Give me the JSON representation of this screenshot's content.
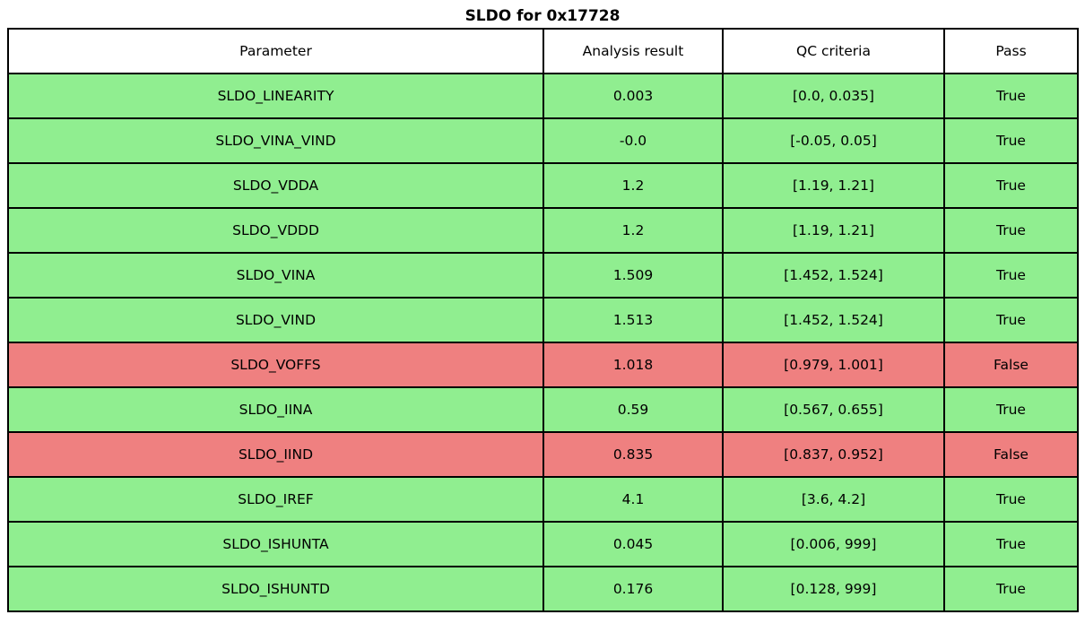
{
  "title": "SLDO for 0x17728",
  "colors": {
    "pass_row": "#90EE90",
    "fail_row": "#EF8080",
    "border": "#000000",
    "header_bg": "#FFFFFF",
    "text": "#000000"
  },
  "chart_data": {
    "type": "table",
    "title": "SLDO for 0x17728",
    "columns": [
      "Parameter",
      "Analysis result",
      "QC criteria",
      "Pass"
    ],
    "rows": [
      {
        "parameter": "SLDO_LINEARITY",
        "result": "0.003",
        "criteria": "[0.0, 0.035]",
        "pass": "True"
      },
      {
        "parameter": "SLDO_VINA_VIND",
        "result": "-0.0",
        "criteria": "[-0.05, 0.05]",
        "pass": "True"
      },
      {
        "parameter": "SLDO_VDDA",
        "result": "1.2",
        "criteria": "[1.19, 1.21]",
        "pass": "True"
      },
      {
        "parameter": "SLDO_VDDD",
        "result": "1.2",
        "criteria": "[1.19, 1.21]",
        "pass": "True"
      },
      {
        "parameter": "SLDO_VINA",
        "result": "1.509",
        "criteria": "[1.452, 1.524]",
        "pass": "True"
      },
      {
        "parameter": "SLDO_VIND",
        "result": "1.513",
        "criteria": "[1.452, 1.524]",
        "pass": "True"
      },
      {
        "parameter": "SLDO_VOFFS",
        "result": "1.018",
        "criteria": "[0.979, 1.001]",
        "pass": "False"
      },
      {
        "parameter": "SLDO_IINA",
        "result": "0.59",
        "criteria": "[0.567, 0.655]",
        "pass": "True"
      },
      {
        "parameter": "SLDO_IIND",
        "result": "0.835",
        "criteria": "[0.837, 0.952]",
        "pass": "False"
      },
      {
        "parameter": "SLDO_IREF",
        "result": "4.1",
        "criteria": "[3.6, 4.2]",
        "pass": "True"
      },
      {
        "parameter": "SLDO_ISHUNTA",
        "result": "0.045",
        "criteria": "[0.006, 999]",
        "pass": "True"
      },
      {
        "parameter": "SLDO_ISHUNTD",
        "result": "0.176",
        "criteria": "[0.128, 999]",
        "pass": "True"
      }
    ]
  }
}
